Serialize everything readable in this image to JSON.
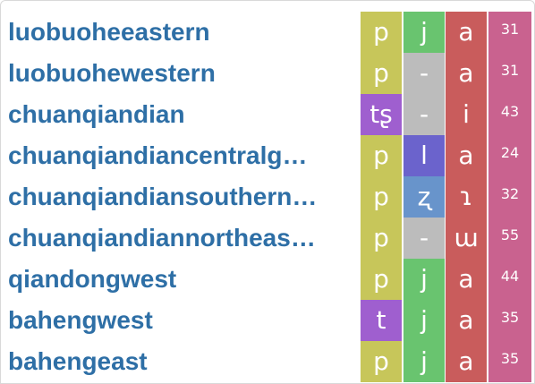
{
  "colors": {
    "initial": "#c7c65a",
    "tone": "#c9628f",
    "final_vowel": "#c95c5c",
    "name_text": "#2e6fa6"
  },
  "rows": [
    {
      "name": "luobuoheeastern",
      "segments": [
        {
          "text": "p",
          "color": "#c7c65a"
        },
        {
          "text": "j",
          "color": "#69c46f"
        },
        {
          "text": "a",
          "color": "#c95c5c"
        }
      ],
      "tone": "31"
    },
    {
      "name": "luobuohewestern",
      "segments": [
        {
          "text": "p",
          "color": "#c7c65a"
        },
        {
          "text": "-",
          "color": "#bcbcbc"
        },
        {
          "text": "a",
          "color": "#c95c5c"
        }
      ],
      "tone": "31"
    },
    {
      "name": "chuanqiandian",
      "segments": [
        {
          "text": "tʂ",
          "color": "#9f5fcf"
        },
        {
          "text": "-",
          "color": "#bcbcbc"
        },
        {
          "text": "i",
          "color": "#c95c5c"
        }
      ],
      "tone": "43"
    },
    {
      "name": "chuanqiandiancentralg…",
      "segments": [
        {
          "text": "p",
          "color": "#c7c65a"
        },
        {
          "text": "l",
          "color": "#6b63cc"
        },
        {
          "text": "a",
          "color": "#c95c5c"
        }
      ],
      "tone": "24"
    },
    {
      "name": "chuanqiandiansouthern…",
      "segments": [
        {
          "text": "p",
          "color": "#c7c65a"
        },
        {
          "text": "ʐ",
          "color": "#6894cb"
        },
        {
          "text": "ɿ",
          "color": "#c95c5c"
        }
      ],
      "tone": "32"
    },
    {
      "name": "chuanqiandiannortheas…",
      "segments": [
        {
          "text": "p",
          "color": "#c7c65a"
        },
        {
          "text": "-",
          "color": "#bcbcbc"
        },
        {
          "text": "ɯ",
          "color": "#c95c5c"
        }
      ],
      "tone": "55"
    },
    {
      "name": "qiandongwest",
      "segments": [
        {
          "text": "p",
          "color": "#c7c65a"
        },
        {
          "text": "j",
          "color": "#69c46f"
        },
        {
          "text": "a",
          "color": "#c95c5c"
        }
      ],
      "tone": "44"
    },
    {
      "name": "bahengwest",
      "segments": [
        {
          "text": "t",
          "color": "#9f5fcf"
        },
        {
          "text": "j",
          "color": "#69c46f"
        },
        {
          "text": "a",
          "color": "#c95c5c"
        }
      ],
      "tone": "35"
    },
    {
      "name": "bahengeast",
      "segments": [
        {
          "text": "p",
          "color": "#c7c65a"
        },
        {
          "text": "j",
          "color": "#69c46f"
        },
        {
          "text": "a",
          "color": "#c95c5c"
        }
      ],
      "tone": "35"
    }
  ]
}
